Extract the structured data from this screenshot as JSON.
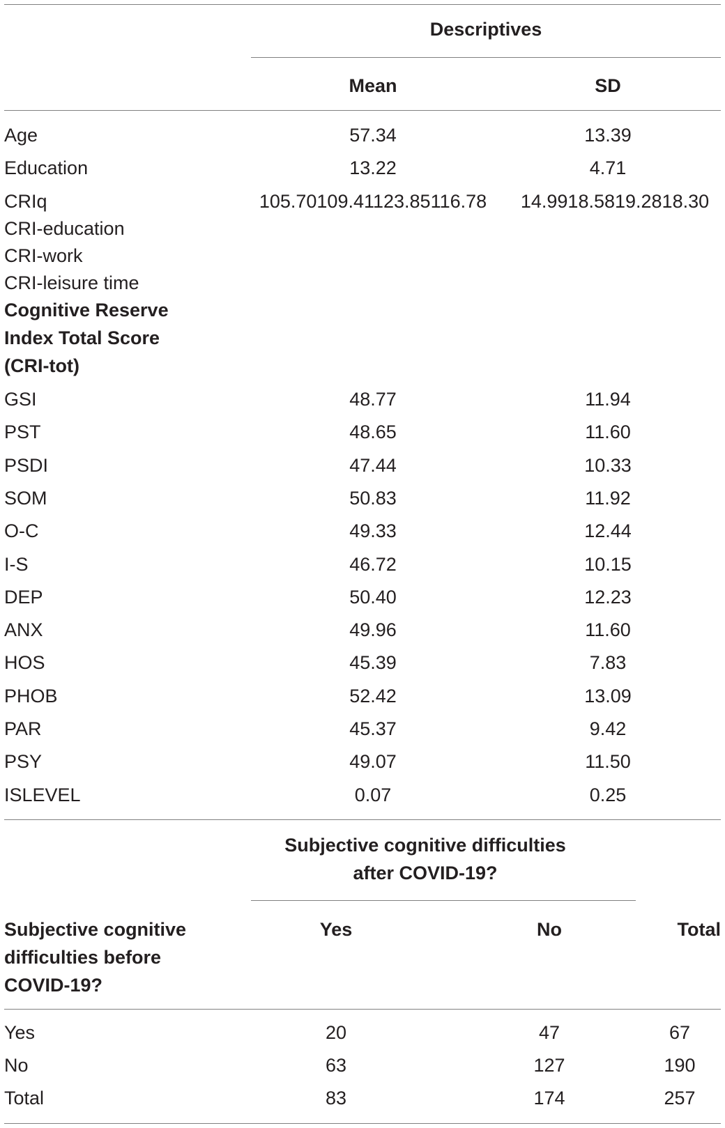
{
  "table1": {
    "group_header": "Descriptives",
    "col_mean": "Mean",
    "col_sd": "SD",
    "rows_top": [
      {
        "label": "Age",
        "mean": "57.34",
        "sd": "13.39"
      },
      {
        "label": "Education",
        "mean": "13.22",
        "sd": "4.71"
      }
    ],
    "cri": {
      "label_1": "CRIq",
      "label_2": "CRI-education",
      "label_3": "CRI-work",
      "label_4": "CRI-leisure time",
      "label_bold": "Cognitive Reserve Index Total Score (CRI-tot)",
      "mean": "105.70109.41123.85116.78",
      "sd": "14.9918.5819.2818.30"
    },
    "rows_bottom": [
      {
        "label": "GSI",
        "mean": "48.77",
        "sd": "11.94"
      },
      {
        "label": "PST",
        "mean": "48.65",
        "sd": "11.60"
      },
      {
        "label": "PSDI",
        "mean": "47.44",
        "sd": "10.33"
      },
      {
        "label": "SOM",
        "mean": "50.83",
        "sd": "11.92"
      },
      {
        "label": "O-C",
        "mean": "49.33",
        "sd": "12.44"
      },
      {
        "label": "I-S",
        "mean": "46.72",
        "sd": "10.15"
      },
      {
        "label": "DEP",
        "mean": "50.40",
        "sd": "12.23"
      },
      {
        "label": "ANX",
        "mean": "49.96",
        "sd": "11.60"
      },
      {
        "label": "HOS",
        "mean": "45.39",
        "sd": "7.83"
      },
      {
        "label": "PHOB",
        "mean": "52.42",
        "sd": "13.09"
      },
      {
        "label": "PAR",
        "mean": "45.37",
        "sd": "9.42"
      },
      {
        "label": "PSY",
        "mean": "49.07",
        "sd": "11.50"
      },
      {
        "label": "ISLEVEL",
        "mean": "0.07",
        "sd": "0.25"
      }
    ]
  },
  "table2": {
    "group_header": "Subjective cognitive difficulties after COVID-19?",
    "row_header": "Subjective cognitive difficulties before COVID-19?",
    "col_yes": "Yes",
    "col_no": "No",
    "col_total": "Total",
    "rows": [
      {
        "label": "Yes",
        "yes": "20",
        "no": "47",
        "total": "67"
      },
      {
        "label": "No",
        "yes": "63",
        "no": "127",
        "total": "190"
      },
      {
        "label": "Total",
        "yes": "83",
        "no": "174",
        "total": "257"
      }
    ]
  }
}
